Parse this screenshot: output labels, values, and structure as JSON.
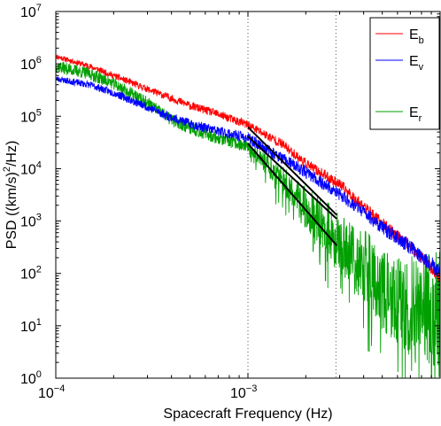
{
  "chart_data": {
    "type": "line",
    "title": "",
    "xlabel": "Spacecraft Frequency (Hz)",
    "ylabel_parts": [
      "PSD ((km/s)",
      "2",
      "/Hz)"
    ],
    "xscale": "log",
    "yscale": "log",
    "xlim": [
      0.0001,
      0.01
    ],
    "ylim": [
      1,
      10000000
    ],
    "grid": false,
    "legend_position": "top-right",
    "x_ticks": [
      {
        "base": "10",
        "exp": "−4",
        "value": 0.0001
      },
      {
        "base": "10",
        "exp": "−3",
        "value": 0.001
      }
    ],
    "y_ticks": [
      {
        "base": "10",
        "exp": "0",
        "value": 1
      },
      {
        "base": "10",
        "exp": "1",
        "value": 10
      },
      {
        "base": "10",
        "exp": "2",
        "value": 100
      },
      {
        "base": "10",
        "exp": "3",
        "value": 1000
      },
      {
        "base": "10",
        "exp": "4",
        "value": 10000
      },
      {
        "base": "10",
        "exp": "5",
        "value": 100000
      },
      {
        "base": "10",
        "exp": "6",
        "value": 1000000
      },
      {
        "base": "10",
        "exp": "7",
        "value": 10000000
      }
    ],
    "vertical_dotted_lines_x": [
      0.001,
      0.00287
    ],
    "series": [
      {
        "name": "E",
        "sub": "b",
        "color": "#ff0000",
        "anchors": [
          [
            0.0001,
            1400000
          ],
          [
            0.00015,
            900000
          ],
          [
            0.0002,
            600000
          ],
          [
            0.0003,
            330000
          ],
          [
            0.0004,
            220000
          ],
          [
            0.0005,
            160000
          ],
          [
            0.0007,
            110000
          ],
          [
            0.001,
            68000
          ],
          [
            0.0015,
            30000
          ],
          [
            0.002,
            12500
          ],
          [
            0.003,
            5000
          ],
          [
            0.004,
            1900
          ],
          [
            0.005,
            900
          ],
          [
            0.007,
            330
          ],
          [
            0.01,
            85
          ]
        ],
        "noise": 0.05,
        "seed": 11
      },
      {
        "name": "E",
        "sub": "v",
        "color": "#0000ff",
        "anchors": [
          [
            0.0001,
            520000
          ],
          [
            0.00015,
            400000
          ],
          [
            0.0002,
            280000
          ],
          [
            0.0003,
            150000
          ],
          [
            0.0004,
            95000
          ],
          [
            0.0005,
            72000
          ],
          [
            0.0007,
            52000
          ],
          [
            0.001,
            38000
          ],
          [
            0.0015,
            16000
          ],
          [
            0.002,
            8500
          ],
          [
            0.003,
            3200
          ],
          [
            0.004,
            1500
          ],
          [
            0.005,
            750
          ],
          [
            0.007,
            320
          ],
          [
            0.01,
            110
          ]
        ],
        "noise": 0.06,
        "seed": 23
      },
      {
        "name": "E",
        "sub": "r",
        "color": "#00a000",
        "anchors": [
          [
            0.0001,
            900000
          ],
          [
            0.00015,
            650000
          ],
          [
            0.0002,
            420000
          ],
          [
            0.0003,
            180000
          ],
          [
            0.0004,
            85000
          ],
          [
            0.0005,
            60000
          ],
          [
            0.0007,
            38000
          ],
          [
            0.001,
            26000
          ],
          [
            0.0015,
            6500
          ],
          [
            0.002,
            1800
          ],
          [
            0.003,
            450
          ],
          [
            0.004,
            130
          ],
          [
            0.005,
            55
          ],
          [
            0.007,
            25
          ],
          [
            0.01,
            20
          ]
        ],
        "noise": 0.12,
        "noise_growth": 1.4,
        "seed": 37
      }
    ],
    "fit_lines": [
      {
        "x": [
          0.001,
          0.0029
        ],
        "y": [
          62000,
          1300
        ]
      },
      {
        "x": [
          0.001,
          0.0029
        ],
        "y": [
          41000,
          1100
        ]
      },
      {
        "x": [
          0.001,
          0.0029
        ],
        "y": [
          30000,
          340
        ]
      }
    ]
  }
}
